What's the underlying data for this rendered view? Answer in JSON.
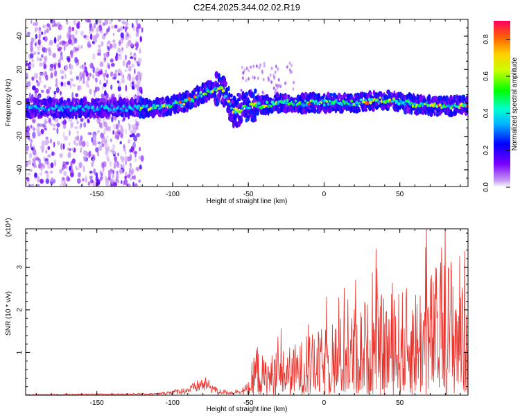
{
  "figure_title": "C2E4.2025.344.02.02.R19",
  "chart_data": [
    {
      "type": "heatmap",
      "xlabel": "Height of straight line (km)",
      "ylabel": "Frequency (Hz)",
      "xlim": [
        -197,
        95
      ],
      "ylim": [
        -50,
        50
      ],
      "xticks": [
        -150,
        -100,
        -50,
        0,
        50
      ],
      "yticks": [
        -40,
        -20,
        0,
        20,
        40
      ],
      "colorbar": {
        "label": "Normalized spectral amplitude",
        "range": [
          0.0,
          0.9
        ],
        "ticks": [
          "0.0",
          "0.2",
          "0.4",
          "0.6",
          "0.8"
        ]
      },
      "ridge": {
        "description_points_x": [
          -197,
          -130,
          -110,
          -90,
          -75,
          -68,
          -60,
          -50,
          -30,
          0,
          20,
          40,
          60,
          80,
          95
        ],
        "description_points_y": [
          -3,
          -3,
          -3,
          1,
          8,
          9,
          -5,
          -2,
          0,
          0,
          0,
          2,
          -1,
          -2,
          -1
        ]
      },
      "noise_region_x": [
        -197,
        -123
      ]
    },
    {
      "type": "line",
      "xlabel": "Height of straight line (km)",
      "ylabel": "SNR (10 * v/v)",
      "yscale_label": "(x10⁴)",
      "xlim": [
        -197,
        95
      ],
      "ylim": [
        0,
        3.9
      ],
      "xticks": [
        -150,
        -100,
        -50,
        0,
        50
      ],
      "yticks": [
        1,
        2,
        3
      ],
      "color": "#e8312a",
      "envelope_x": [
        -197,
        -110,
        -90,
        -80,
        -75,
        -70,
        -60,
        -50,
        -45,
        -40,
        -20,
        0,
        20,
        40,
        60,
        80,
        95
      ],
      "envelope_y": [
        0.02,
        0.05,
        0.2,
        0.45,
        0.35,
        0.15,
        0.1,
        0.3,
        1.3,
        0.9,
        1.2,
        1.6,
        2.1,
        2.4,
        2.6,
        3.3,
        3.5
      ]
    }
  ]
}
